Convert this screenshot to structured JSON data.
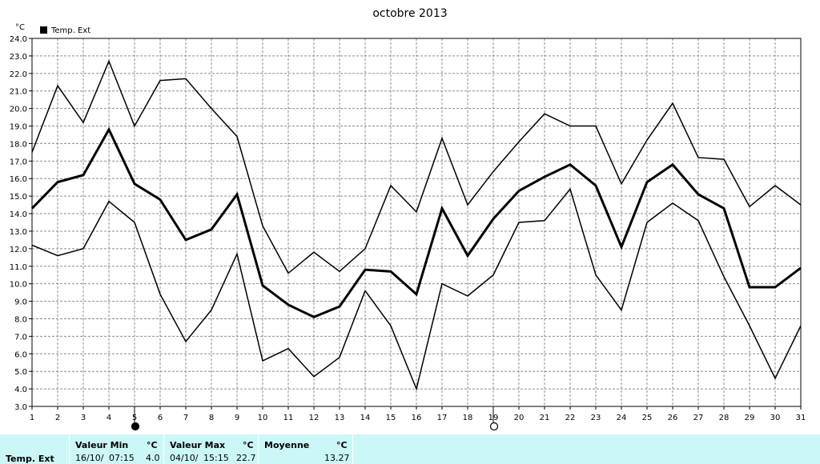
{
  "chart_data": {
    "type": "line",
    "title": "octobre 2013",
    "ylabel": "°C",
    "ylim": [
      3.0,
      24.0
    ],
    "yticks": [
      "3.0",
      "4.0",
      "5.0",
      "6.0",
      "7.0",
      "8.0",
      "9.0",
      "10.0",
      "11.0",
      "12.0",
      "13.0",
      "14.0",
      "15.0",
      "16.0",
      "17.0",
      "18.0",
      "19.0",
      "20.0",
      "21.0",
      "22.0",
      "23.0",
      "24.0"
    ],
    "x": [
      1,
      2,
      3,
      4,
      5,
      6,
      7,
      8,
      9,
      10,
      11,
      12,
      13,
      14,
      15,
      16,
      17,
      18,
      19,
      20,
      21,
      22,
      23,
      24,
      25,
      26,
      27,
      28,
      29,
      30,
      31
    ],
    "xlim": [
      1,
      31
    ],
    "grid": true,
    "legend": "top-left",
    "series": [
      {
        "name": "Temp. Ext",
        "role": "moyenne",
        "values": [
          14.3,
          15.8,
          16.2,
          18.8,
          15.7,
          14.8,
          12.5,
          13.1,
          15.1,
          9.9,
          8.8,
          8.1,
          8.7,
          10.8,
          10.7,
          9.4,
          14.3,
          11.6,
          13.7,
          15.3,
          16.1,
          16.8,
          15.6,
          12.1,
          15.8,
          16.8,
          15.1,
          14.3,
          9.8,
          9.8,
          10.9
        ]
      },
      {
        "role": "max",
        "values": [
          17.5,
          21.3,
          19.2,
          22.7,
          19.0,
          21.6,
          21.7,
          20.0,
          18.4,
          13.3,
          10.6,
          11.8,
          10.7,
          12.0,
          15.6,
          14.1,
          18.3,
          14.5,
          16.4,
          18.1,
          19.7,
          19.0,
          19.0,
          15.7,
          18.2,
          20.3,
          17.2,
          17.1,
          14.4,
          15.6,
          14.5
        ]
      },
      {
        "role": "min",
        "values": [
          12.2,
          11.6,
          12.0,
          14.7,
          13.5,
          9.4,
          6.7,
          8.5,
          11.7,
          5.6,
          6.3,
          4.7,
          5.8,
          9.6,
          7.6,
          4.0,
          10.0,
          9.3,
          10.5,
          13.5,
          13.6,
          15.4,
          10.5,
          8.5,
          13.5,
          14.6,
          13.6,
          10.4,
          7.6,
          4.6,
          7.6
        ]
      }
    ],
    "markers": [
      {
        "x": 5,
        "symbol": "filled-circle"
      },
      {
        "x": 19,
        "symbol": "open-circle"
      }
    ]
  },
  "footer": {
    "series_label": "Temp. Ext",
    "min_label": "Valeur Min",
    "min_unit": "°C",
    "min_date": "16/10/",
    "min_time": "07:15",
    "min_value": "4.0",
    "max_label": "Valeur Max",
    "max_unit": "°C",
    "max_date": "04/10/",
    "max_time": "15:15",
    "max_value": "22.7",
    "mean_label": "Moyenne",
    "mean_unit": "°C",
    "mean_value": "13.27"
  }
}
